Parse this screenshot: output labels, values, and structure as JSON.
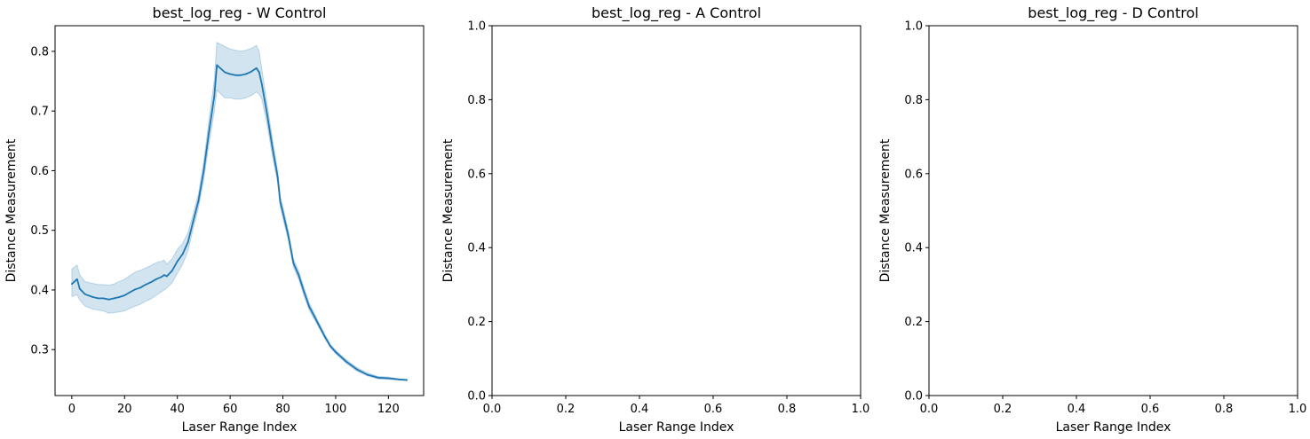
{
  "chart_data": [
    {
      "type": "line",
      "title": "best_log_reg - W Control",
      "xlabel": "Laser Range Index",
      "ylabel": "Distance Measurement",
      "xlim": [
        -6.35,
        133.35
      ],
      "ylim": [
        0.223,
        0.843
      ],
      "xticks": [
        0,
        20,
        40,
        60,
        80,
        100,
        120
      ],
      "xtick_labels": [
        "0",
        "20",
        "40",
        "60",
        "80",
        "100",
        "120"
      ],
      "yticks": [
        0.3,
        0.4,
        0.5,
        0.6,
        0.7,
        0.8
      ],
      "ytick_labels": [
        "0.3",
        "0.4",
        "0.5",
        "0.6",
        "0.7",
        "0.8"
      ],
      "grid": false,
      "colors": {
        "line": "#1f77b4",
        "band": "#1f77b4"
      },
      "series": [
        {
          "x": [
            0,
            2,
            3,
            5,
            8,
            10,
            12,
            14,
            16,
            18,
            20,
            22,
            24,
            26,
            28,
            30,
            32,
            34,
            35,
            36,
            38,
            40,
            42,
            44,
            46,
            48,
            50,
            52,
            54,
            55,
            58,
            60,
            62,
            64,
            66,
            68,
            70,
            71,
            72,
            74,
            76,
            78,
            79,
            80,
            82,
            84,
            86,
            88,
            90,
            92,
            94,
            96,
            98,
            100,
            104,
            108,
            112,
            116,
            120,
            124,
            127
          ],
          "y": [
            0.41,
            0.418,
            0.402,
            0.393,
            0.388,
            0.386,
            0.386,
            0.384,
            0.386,
            0.388,
            0.391,
            0.396,
            0.401,
            0.404,
            0.409,
            0.413,
            0.418,
            0.422,
            0.425,
            0.423,
            0.432,
            0.448,
            0.46,
            0.48,
            0.515,
            0.55,
            0.6,
            0.665,
            0.725,
            0.777,
            0.765,
            0.762,
            0.76,
            0.76,
            0.762,
            0.766,
            0.772,
            0.765,
            0.745,
            0.695,
            0.64,
            0.59,
            0.548,
            0.53,
            0.492,
            0.445,
            0.425,
            0.397,
            0.372,
            0.355,
            0.338,
            0.321,
            0.306,
            0.296,
            0.28,
            0.267,
            0.258,
            0.253,
            0.252,
            0.25,
            0.249
          ],
          "ci_lower": [
            0.389,
            0.392,
            0.383,
            0.373,
            0.368,
            0.366,
            0.365,
            0.361,
            0.362,
            0.363,
            0.365,
            0.369,
            0.373,
            0.376,
            0.381,
            0.385,
            0.391,
            0.397,
            0.4,
            0.403,
            0.412,
            0.428,
            0.443,
            0.465,
            0.503,
            0.538,
            0.585,
            0.645,
            0.7,
            0.735,
            0.722,
            0.722,
            0.72,
            0.72,
            0.722,
            0.726,
            0.732,
            0.728,
            0.72,
            0.678,
            0.625,
            0.58,
            0.54,
            0.52,
            0.484,
            0.438,
            0.418,
            0.39,
            0.366,
            0.35,
            0.334,
            0.318,
            0.303,
            0.293,
            0.277,
            0.264,
            0.256,
            0.251,
            0.25,
            0.249,
            0.248
          ],
          "ci_upper": [
            0.435,
            0.442,
            0.425,
            0.414,
            0.411,
            0.409,
            0.409,
            0.408,
            0.41,
            0.414,
            0.418,
            0.424,
            0.43,
            0.433,
            0.437,
            0.441,
            0.446,
            0.448,
            0.45,
            0.443,
            0.452,
            0.468,
            0.478,
            0.496,
            0.527,
            0.562,
            0.615,
            0.685,
            0.752,
            0.815,
            0.808,
            0.804,
            0.802,
            0.8,
            0.802,
            0.805,
            0.81,
            0.8,
            0.77,
            0.712,
            0.655,
            0.6,
            0.557,
            0.54,
            0.5,
            0.452,
            0.432,
            0.404,
            0.378,
            0.36,
            0.342,
            0.325,
            0.309,
            0.299,
            0.283,
            0.27,
            0.261,
            0.255,
            0.254,
            0.251,
            0.25
          ]
        }
      ]
    },
    {
      "type": "line",
      "title": "best_log_reg - A Control",
      "xlabel": "Laser Range Index",
      "ylabel": "Distance Measurement",
      "xlim": [
        0,
        1
      ],
      "ylim": [
        0,
        1
      ],
      "xticks": [
        0,
        0.2,
        0.4,
        0.6,
        0.8,
        1.0
      ],
      "xtick_labels": [
        "0.0",
        "0.2",
        "0.4",
        "0.6",
        "0.8",
        "1.0"
      ],
      "yticks": [
        0,
        0.2,
        0.4,
        0.6,
        0.8,
        1.0
      ],
      "ytick_labels": [
        "0.0",
        "0.2",
        "0.4",
        "0.6",
        "0.8",
        "1.0"
      ],
      "grid": false,
      "series": []
    },
    {
      "type": "line",
      "title": "best_log_reg - D Control",
      "xlabel": "Laser Range Index",
      "ylabel": "Distance Measurement",
      "xlim": [
        0,
        1
      ],
      "ylim": [
        0,
        1
      ],
      "xticks": [
        0,
        0.2,
        0.4,
        0.6,
        0.8,
        1.0
      ],
      "xtick_labels": [
        "0.0",
        "0.2",
        "0.4",
        "0.6",
        "0.8",
        "1.0"
      ],
      "yticks": [
        0,
        0.2,
        0.4,
        0.6,
        0.8,
        1.0
      ],
      "ytick_labels": [
        "0.0",
        "0.2",
        "0.4",
        "0.6",
        "0.8",
        "1.0"
      ],
      "grid": false,
      "series": []
    }
  ]
}
